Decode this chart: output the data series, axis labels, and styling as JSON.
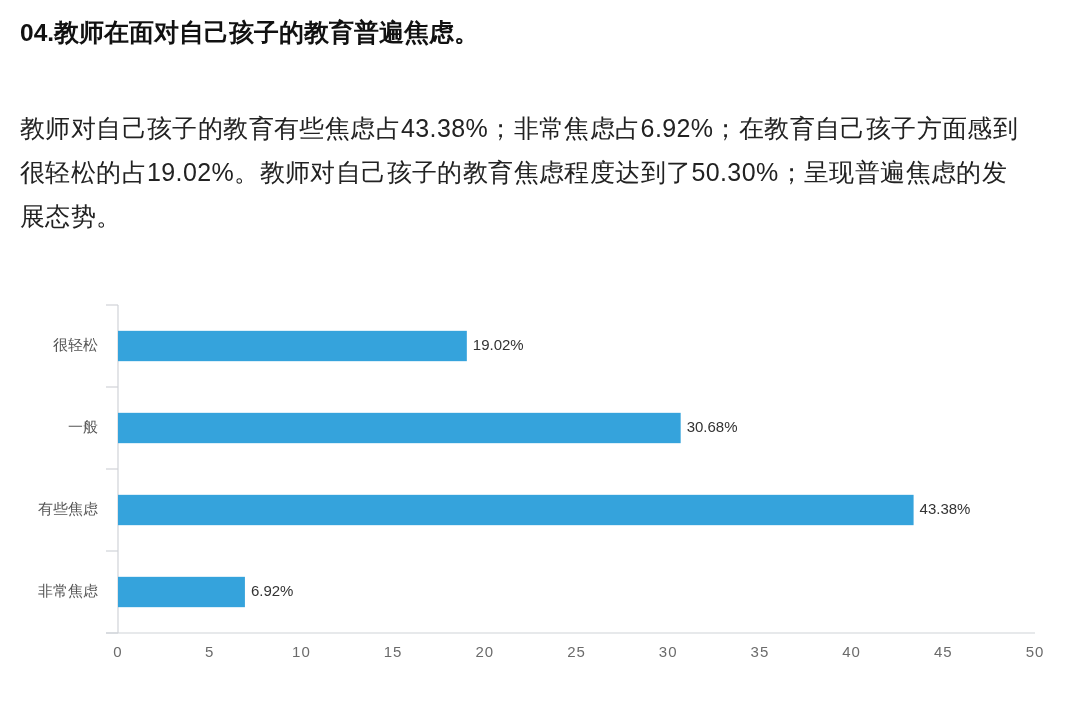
{
  "chart_data": {
    "type": "bar",
    "orientation": "horizontal",
    "title": "04.教师在面对自己孩子的教育普遍焦虑。",
    "subtitle": "教师对自己孩子的教育有些焦虑占43.38%；非常焦虑占6.92%；在教育自己孩子方面感到很轻松的占19.02%。教师对自己孩子的教育焦虑程度达到了50.30%；呈现普遍焦虑的发展态势。",
    "categories": [
      "很轻松",
      "一般",
      "有些焦虑",
      "非常焦虑"
    ],
    "values": [
      19.02,
      30.68,
      43.38,
      6.92
    ],
    "value_labels": [
      "19.02%",
      "30.68%",
      "43.38%",
      "6.92%"
    ],
    "color": "#35a3dc",
    "xlim": [
      0,
      50
    ],
    "xticks": [
      0,
      5,
      10,
      15,
      20,
      25,
      30,
      35,
      40,
      45,
      50
    ]
  }
}
